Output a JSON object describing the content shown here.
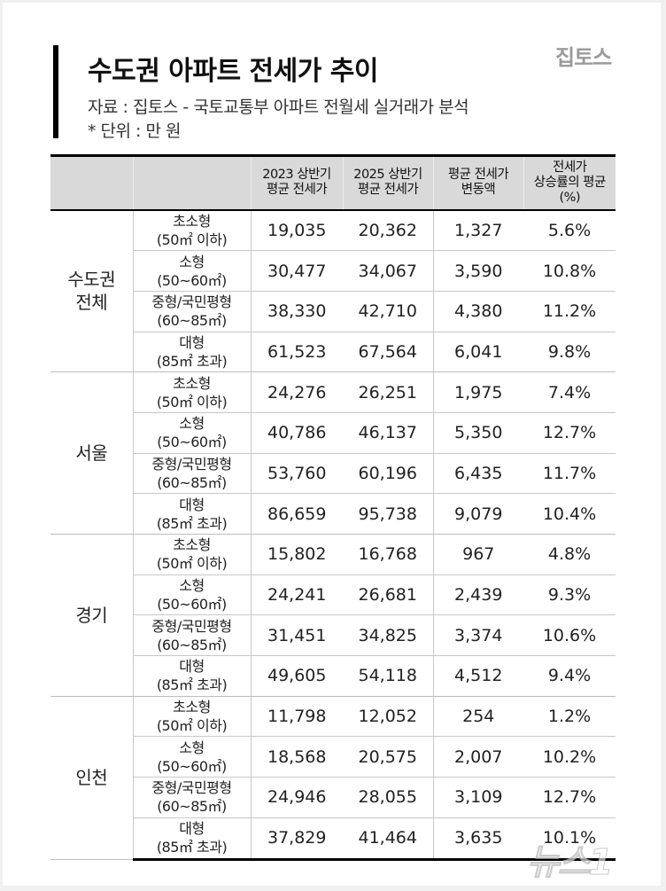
{
  "header": {
    "title": "수도권 아파트 전세가 추이",
    "source": "자료 : 집토스 - 국토교통부 아파트 전월세 실거래가 분석",
    "unit": "* 단위 : 만 원",
    "logo": "집토스"
  },
  "table": {
    "columns": [
      {
        "line1": "",
        "line2": ""
      },
      {
        "line1": "",
        "line2": ""
      },
      {
        "line1": "2023 상반기",
        "line2": "평균 전세가"
      },
      {
        "line1": "2025 상반기",
        "line2": "평균 전세가"
      },
      {
        "line1": "평균 전세가",
        "line2": "변동액"
      },
      {
        "line1": "전세가",
        "line2": "상승률의 평균",
        "line3": "(%)"
      }
    ],
    "sizes": [
      {
        "name": "초소형",
        "range": "(50㎡ 이하)"
      },
      {
        "name": "소형",
        "range": "(50~60㎡)"
      },
      {
        "name": "중형/국민평형",
        "range": "(60~85㎡)"
      },
      {
        "name": "대형",
        "range": "(85㎡ 초과)"
      }
    ],
    "groups": [
      {
        "region_line1": "수도권",
        "region_line2": "전체",
        "rows": [
          {
            "y2023": "19,035",
            "y2025": "20,362",
            "change": "1,327",
            "rate": "5.6%"
          },
          {
            "y2023": "30,477",
            "y2025": "34,067",
            "change": "3,590",
            "rate": "10.8%"
          },
          {
            "y2023": "38,330",
            "y2025": "42,710",
            "change": "4,380",
            "rate": "11.2%"
          },
          {
            "y2023": "61,523",
            "y2025": "67,564",
            "change": "6,041",
            "rate": "9.8%"
          }
        ]
      },
      {
        "region_line1": "서울",
        "region_line2": "",
        "rows": [
          {
            "y2023": "24,276",
            "y2025": "26,251",
            "change": "1,975",
            "rate": "7.4%"
          },
          {
            "y2023": "40,786",
            "y2025": "46,137",
            "change": "5,350",
            "rate": "12.7%"
          },
          {
            "y2023": "53,760",
            "y2025": "60,196",
            "change": "6,435",
            "rate": "11.7%"
          },
          {
            "y2023": "86,659",
            "y2025": "95,738",
            "change": "9,079",
            "rate": "10.4%"
          }
        ]
      },
      {
        "region_line1": "경기",
        "region_line2": "",
        "rows": [
          {
            "y2023": "15,802",
            "y2025": "16,768",
            "change": "967",
            "rate": "4.8%"
          },
          {
            "y2023": "24,241",
            "y2025": "26,681",
            "change": "2,439",
            "rate": "9.3%"
          },
          {
            "y2023": "31,451",
            "y2025": "34,825",
            "change": "3,374",
            "rate": "10.6%"
          },
          {
            "y2023": "49,605",
            "y2025": "54,118",
            "change": "4,512",
            "rate": "9.4%"
          }
        ]
      },
      {
        "region_line1": "인천",
        "region_line2": "",
        "rows": [
          {
            "y2023": "11,798",
            "y2025": "12,052",
            "change": "254",
            "rate": "1.2%"
          },
          {
            "y2023": "18,568",
            "y2025": "20,575",
            "change": "2,007",
            "rate": "10.2%"
          },
          {
            "y2023": "24,946",
            "y2025": "28,055",
            "change": "3,109",
            "rate": "12.7%"
          },
          {
            "y2023": "37,829",
            "y2025": "41,464",
            "change": "3,635",
            "rate": "10.1%"
          }
        ]
      }
    ]
  },
  "watermark": "뉴스1"
}
